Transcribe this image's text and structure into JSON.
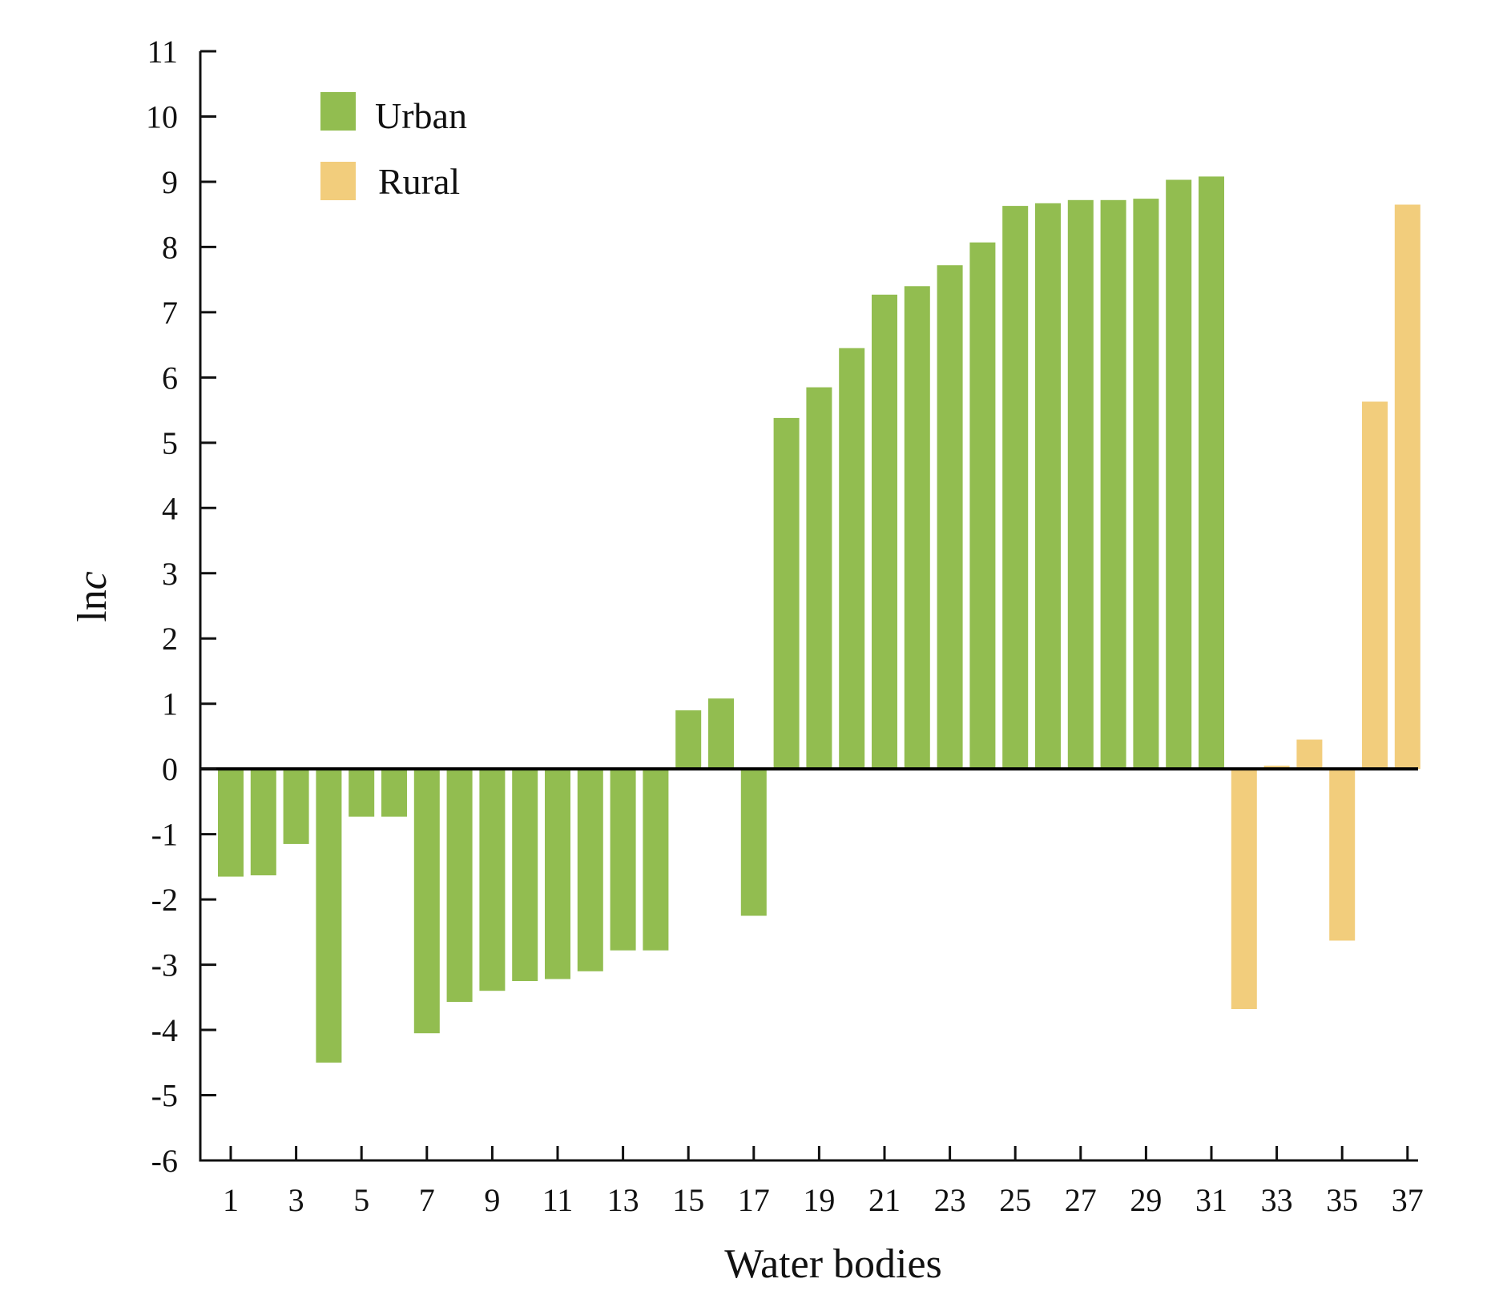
{
  "chart_data": {
    "type": "bar",
    "title": "",
    "xlabel": "Water bodies",
    "ylabel_main": "ln",
    "ylabel_italic": "c",
    "ylim": [
      -6,
      11
    ],
    "yticks": [
      "-6",
      "-5",
      "-4",
      "-3",
      "-2",
      "-1",
      "0",
      "1",
      "2",
      "3",
      "4",
      "5",
      "6",
      "7",
      "8",
      "9",
      "10",
      "11"
    ],
    "xticks": [
      "1",
      "3",
      "5",
      "7",
      "9",
      "11",
      "13",
      "15",
      "17",
      "19",
      "21",
      "23",
      "25",
      "27",
      "29",
      "31",
      "33",
      "35",
      "37"
    ],
    "legend_position": "top-left",
    "series": [
      {
        "name": "Urban",
        "color": "#92bd50",
        "x": [
          1,
          2,
          3,
          4,
          5,
          6,
          7,
          8,
          9,
          10,
          11,
          12,
          13,
          14,
          15,
          16,
          17,
          18,
          19,
          20,
          21,
          22,
          23,
          24,
          25,
          26,
          27,
          28,
          29,
          30,
          31
        ],
        "values": [
          -1.65,
          -1.63,
          -1.15,
          -4.5,
          -0.73,
          -0.73,
          -4.05,
          -3.57,
          -3.4,
          -3.25,
          -3.22,
          -3.1,
          -2.78,
          -2.78,
          0.9,
          1.08,
          -2.25,
          5.38,
          5.85,
          6.45,
          7.27,
          7.4,
          7.72,
          8.07,
          8.63,
          8.67,
          8.72,
          8.72,
          8.74,
          9.03,
          9.08
        ]
      },
      {
        "name": "Rural",
        "color": "#f2cd7c",
        "x": [
          32,
          33,
          34,
          35,
          36,
          37
        ],
        "values": [
          -3.68,
          0.05,
          0.45,
          -2.63,
          5.63,
          8.65
        ]
      }
    ]
  }
}
